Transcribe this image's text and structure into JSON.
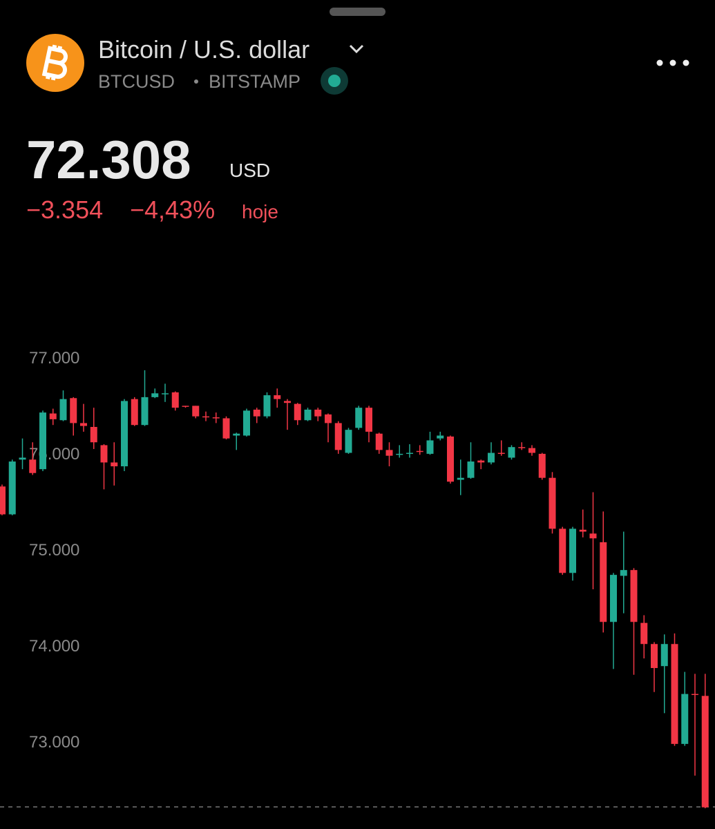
{
  "header": {
    "title": "Bitcoin / U.S. dollar",
    "symbol": "BTCUSD",
    "exchange": "BITSTAMP",
    "price": "72.308",
    "currency": "USD",
    "change": "−3.354",
    "change_percent": "−4,43%",
    "period": "hoje"
  },
  "chart_data": {
    "type": "candlestick",
    "up_color": "#22ab94",
    "down_color": "#f23645",
    "open": [
      75660,
      75370,
      75940,
      75940,
      75840,
      76420,
      76350,
      76580,
      76320,
      76280,
      76090,
      75910,
      75870,
      76570,
      76300,
      76590,
      76620,
      76640,
      76500,
      76500,
      76390,
      76380,
      76370,
      76190,
      76190,
      76460,
      76390,
      76610,
      76550,
      76520,
      76350,
      76460,
      76410,
      76320,
      76010,
      76270,
      76480,
      76210,
      76040,
      75990,
      76010,
      76030,
      76000,
      76160,
      76180,
      75730,
      75750,
      75930,
      75910,
      76010,
      75960,
      76070,
      76060,
      76000,
      75750,
      75220,
      74760,
      75210,
      75170,
      75080,
      74250,
      74730,
      74790,
      74240,
      74020,
      73790,
      74020,
      72980,
      73500,
      73480
    ],
    "high": [
      75680,
      75940,
      76160,
      76120,
      76450,
      76470,
      76660,
      76590,
      76520,
      76480,
      76100,
      76120,
      76570,
      76590,
      76870,
      76680,
      76730,
      76650,
      76500,
      76500,
      76440,
      76430,
      76390,
      76220,
      76470,
      76480,
      76640,
      76680,
      76570,
      76530,
      76480,
      76480,
      76420,
      76340,
      76270,
      76500,
      76500,
      76220,
      76120,
      76090,
      76100,
      76090,
      76230,
      76230,
      76190,
      75940,
      76120,
      75940,
      76120,
      76140,
      76090,
      76120,
      76090,
      76010,
      75810,
      75240,
      75240,
      75420,
      75600,
      75400,
      74760,
      75190,
      74810,
      74320,
      74040,
      74120,
      74130,
      73730,
      73710,
      73710
    ],
    "low": [
      75360,
      75360,
      75840,
      75780,
      75820,
      76300,
      76340,
      76190,
      76230,
      76050,
      75630,
      75670,
      75820,
      76290,
      76290,
      76580,
      76540,
      76450,
      76480,
      76370,
      76340,
      76320,
      76150,
      76040,
      76180,
      76320,
      76370,
      76480,
      76250,
      76300,
      76340,
      76340,
      76120,
      76000,
      76000,
      76250,
      76120,
      76000,
      75870,
      75960,
      75960,
      75990,
      75990,
      76140,
      75690,
      75570,
      75740,
      75840,
      75890,
      75980,
      75940,
      76040,
      75980,
      75730,
      75170,
      74740,
      74680,
      75130,
      74590,
      74140,
      73760,
      74340,
      73700,
      73870,
      73520,
      73300,
      72960,
      72960,
      72650,
      72310
    ],
    "close": [
      75370,
      75920,
      75960,
      75800,
      76430,
      76360,
      76570,
      76320,
      76290,
      76120,
      75910,
      75870,
      76550,
      76300,
      76590,
      76630,
      76630,
      76480,
      76490,
      76390,
      76380,
      76370,
      76160,
      76210,
      76450,
      76390,
      76610,
      76570,
      76530,
      76350,
      76460,
      76390,
      76320,
      76040,
      76250,
      76480,
      76230,
      76040,
      75980,
      76000,
      76010,
      76020,
      76140,
      76190,
      75710,
      75750,
      75920,
      75910,
      76010,
      76000,
      76070,
      76060,
      76010,
      75750,
      75220,
      74760,
      75220,
      75190,
      75120,
      74250,
      74740,
      74790,
      74250,
      74020,
      73770,
      74020,
      72980,
      73500,
      73490,
      72320
    ],
    "ylim": [
      72310,
      77560
    ],
    "yticks": [
      {
        "value": 73000,
        "label": "73.000"
      },
      {
        "value": 74000,
        "label": "74.000"
      },
      {
        "value": 75000,
        "label": "75.000"
      },
      {
        "value": 76000,
        "label": "76.000"
      },
      {
        "value": 77000,
        "label": "77.000"
      }
    ]
  }
}
